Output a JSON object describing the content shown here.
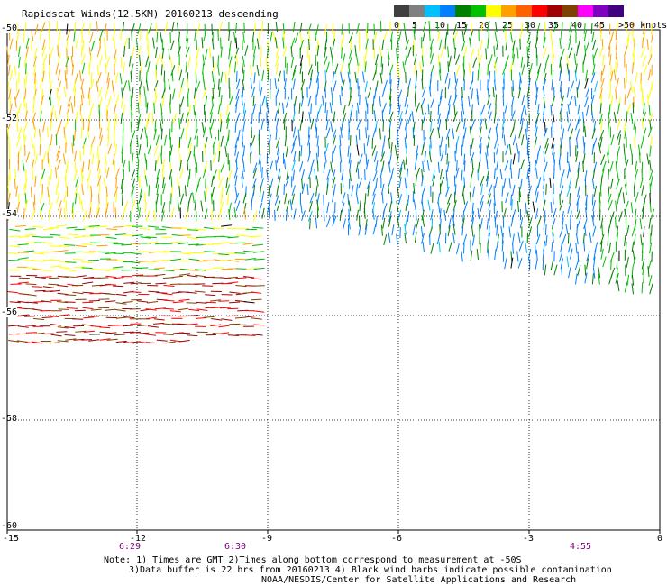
{
  "title": "Rapidscat Winds(12.5KM) 20160213 descending",
  "legend": {
    "labels": [
      "0",
      "5",
      "10",
      "15",
      "20",
      "25",
      "30",
      "35",
      "40",
      "45",
      ">50 knots"
    ],
    "colors": [
      "#404040",
      "#808080",
      "#00c0ff",
      "#0080ff",
      "#008000",
      "#00c000",
      "#ffff00",
      "#ffa000",
      "#ff6000",
      "#ff0000",
      "#a00000",
      "#804000",
      "#ff00ff",
      "#8000c0",
      "#400080"
    ]
  },
  "axes": {
    "x_ticks": [
      "-15",
      "-12",
      "-9",
      "-6",
      "-3",
      "0"
    ],
    "y_ticks": [
      "-50",
      "-52",
      "-54",
      "-56",
      "-58",
      "-60"
    ]
  },
  "times": [
    "6:29",
    "6:30",
    "4:55"
  ],
  "notes": {
    "line1": "Note: 1) Times are GMT 2)Times along bottom correspond to measurement at -50S",
    "line2": "3)Data buffer is 22 hrs from 20160213 4) Black wind barbs indicate possible contamination",
    "line3": "NOAA/NESDIS/Center for Satellite Applications and Research"
  }
}
